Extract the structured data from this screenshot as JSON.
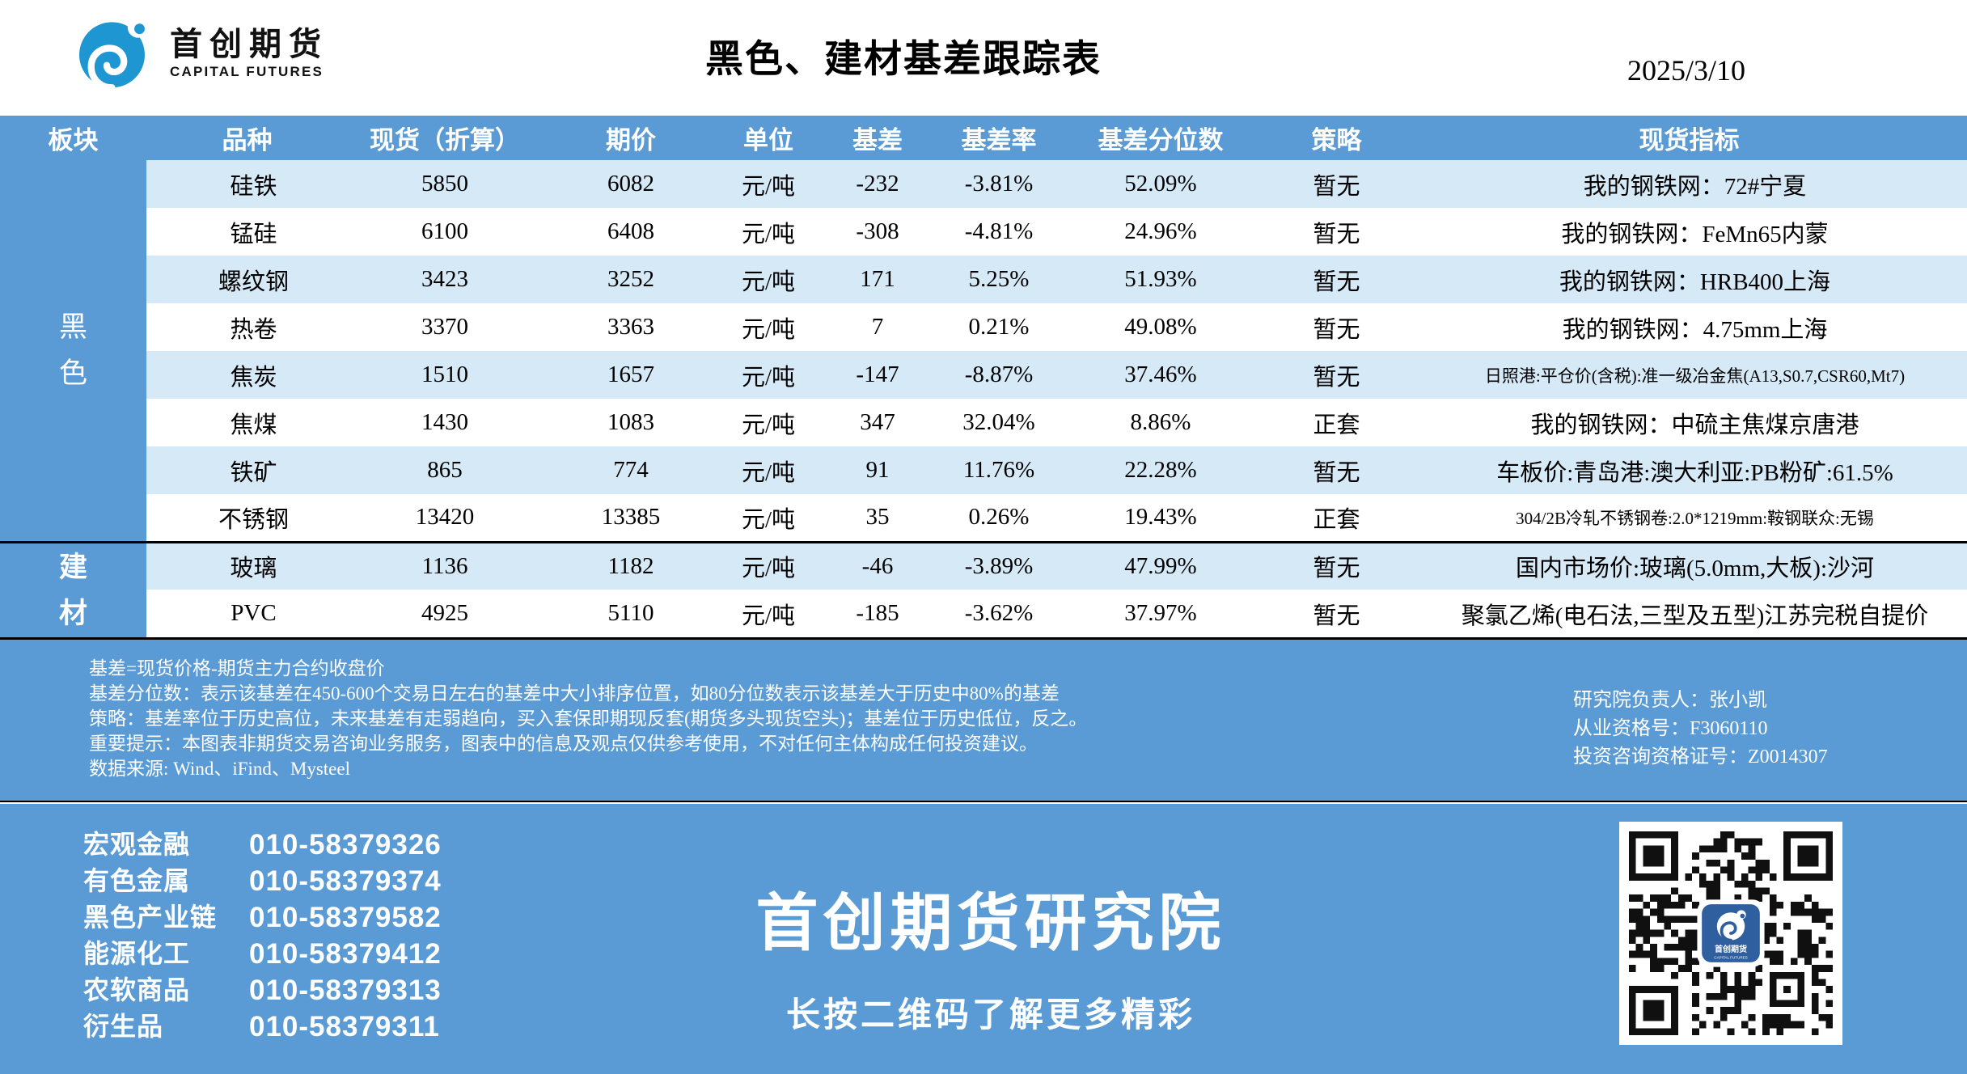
{
  "header": {
    "logo": {
      "cn": "首创期货",
      "en": "CAPITAL FUTURES"
    },
    "title": "黑色、建材基差跟踪表",
    "date": "2025/3/10"
  },
  "table": {
    "columns": [
      "板块",
      "品种",
      "现货（折算）",
      "期价",
      "单位",
      "基差",
      "基差率",
      "基差分位数",
      "策略",
      "现货指标"
    ],
    "sectors": [
      {
        "name": "黑色",
        "rows": [
          {
            "variety": "硅铁",
            "spot": "5850",
            "futures": "6082",
            "unit": "元/吨",
            "basis": "-232",
            "basis_rate": "-3.81%",
            "percentile": "52.09%",
            "strategy": "暂无",
            "indicator": "我的钢铁网：72#宁夏"
          },
          {
            "variety": "锰硅",
            "spot": "6100",
            "futures": "6408",
            "unit": "元/吨",
            "basis": "-308",
            "basis_rate": "-4.81%",
            "percentile": "24.96%",
            "strategy": "暂无",
            "indicator": "我的钢铁网：FeMn65内蒙"
          },
          {
            "variety": "螺纹钢",
            "spot": "3423",
            "futures": "3252",
            "unit": "元/吨",
            "basis": "171",
            "basis_rate": "5.25%",
            "percentile": "51.93%",
            "strategy": "暂无",
            "indicator": "我的钢铁网：HRB400上海"
          },
          {
            "variety": "热卷",
            "spot": "3370",
            "futures": "3363",
            "unit": "元/吨",
            "basis": "7",
            "basis_rate": "0.21%",
            "percentile": "49.08%",
            "strategy": "暂无",
            "indicator": "我的钢铁网：4.75mm上海"
          },
          {
            "variety": "焦炭",
            "spot": "1510",
            "futures": "1657",
            "unit": "元/吨",
            "basis": "-147",
            "basis_rate": "-8.87%",
            "percentile": "37.46%",
            "strategy": "暂无",
            "indicator": "日照港:平仓价(含税):准一级冶金焦(A13,S0.7,CSR60,Mt7)"
          },
          {
            "variety": "焦煤",
            "spot": "1430",
            "futures": "1083",
            "unit": "元/吨",
            "basis": "347",
            "basis_rate": "32.04%",
            "percentile": "8.86%",
            "strategy": "正套",
            "indicator": "我的钢铁网：中硫主焦煤京唐港"
          },
          {
            "variety": "铁矿",
            "spot": "865",
            "futures": "774",
            "unit": "元/吨",
            "basis": "91",
            "basis_rate": "11.76%",
            "percentile": "22.28%",
            "strategy": "暂无",
            "indicator": "车板价:青岛港:澳大利亚:PB粉矿:61.5%"
          },
          {
            "variety": "不锈钢",
            "spot": "13420",
            "futures": "13385",
            "unit": "元/吨",
            "basis": "35",
            "basis_rate": "0.26%",
            "percentile": "19.43%",
            "strategy": "正套",
            "indicator": "304/2B冷轧不锈钢卷:2.0*1219mm:鞍钢联众:无锡"
          }
        ]
      },
      {
        "name": "建材",
        "rows": [
          {
            "variety": "玻璃",
            "spot": "1136",
            "futures": "1182",
            "unit": "元/吨",
            "basis": "-46",
            "basis_rate": "-3.89%",
            "percentile": "47.99%",
            "strategy": "暂无",
            "indicator": "国内市场价:玻璃(5.0mm,大板):沙河"
          },
          {
            "variety": "PVC",
            "spot": "4925",
            "futures": "5110",
            "unit": "元/吨",
            "basis": "-185",
            "basis_rate": "-3.62%",
            "percentile": "37.97%",
            "strategy": "暂无",
            "indicator": "聚氯乙烯(电石法,三型及五型)江苏完税自提价"
          }
        ]
      }
    ]
  },
  "notes": {
    "left": [
      "基差=现货价格-期货主力合约收盘价",
      "基差分位数：表示该基差在450-600个交易日左右的基差中大小排序位置，如80分位数表示该基差大于历史中80%的基差",
      "策略：基差率位于历史高位，未来基差有走弱趋向，买入套保即期现反套(期货多头现货空头)；基差位于历史低位，反之。",
      "重要提示：本图表非期货交易咨询业务服务，图表中的信息及观点仅供参考使用，不对任何主体构成任何投资建议。",
      "数据来源: Wind、iFind、Mysteel"
    ],
    "right": [
      "研究院负责人：张小凯",
      "从业资格号：F3060110",
      "投资咨询资格证号：Z0014307"
    ]
  },
  "footer": {
    "contacts": [
      {
        "label": "宏观金融",
        "phone": "010-58379326"
      },
      {
        "label": "有色金属",
        "phone": "010-58379374"
      },
      {
        "label": "黑色产业链",
        "phone": "010-58379582"
      },
      {
        "label": "能源化工",
        "phone": "010-58379412"
      },
      {
        "label": "农软商品",
        "phone": "010-58379313"
      },
      {
        "label": "衍生品",
        "phone": "010-58379311"
      }
    ],
    "banner_title": "首创期货研究院",
    "banner_subtitle": "长按二维码了解更多精彩"
  },
  "colors": {
    "band_blue": "#5b9bd5",
    "row_alt_blue": "#d6e9f7",
    "logo_blue": "#1e96d2",
    "qr_logo_blue": "#2f5f9e"
  }
}
